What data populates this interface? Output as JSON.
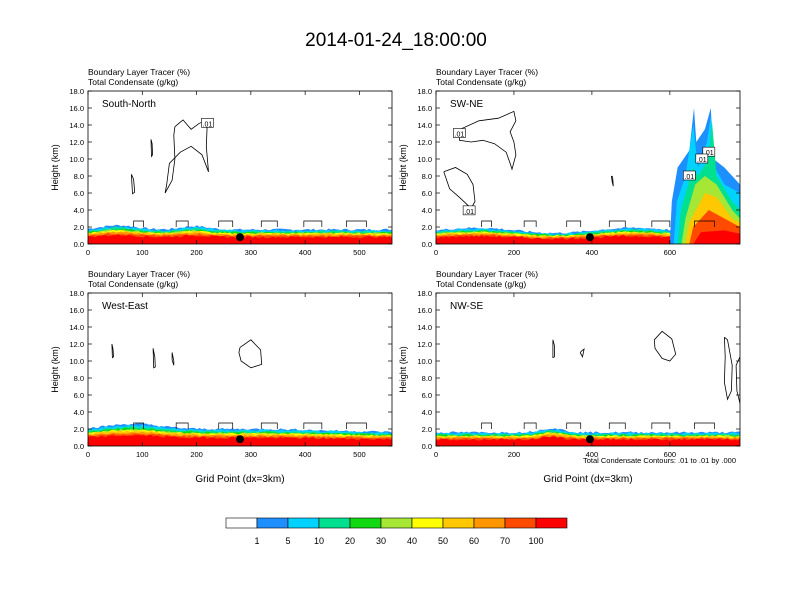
{
  "title": "2014-01-24_18:00:00",
  "chart_data": {
    "type": "heatmap",
    "panels": [
      {
        "name": "South-North",
        "header_line1": "Boundary Layer Tracer    (%)",
        "header_line2": "Total Condensate    (g/kg)",
        "ylabel": "Height (km)",
        "xlabel": "",
        "ylim": [
          0,
          18
        ],
        "xlim": [
          0,
          560
        ],
        "yticks": [
          "0.0",
          "2.0",
          "4.0",
          "6.0",
          "8.0",
          "10.0",
          "12.0",
          "14.0",
          "16.0",
          "18.0"
        ],
        "xticks": [
          0,
          100,
          200,
          300,
          400,
          500
        ],
        "marker_x": 280,
        "contour_labels": [
          {
            "text": ".01",
            "x": 220,
            "y": 14.2
          }
        ]
      },
      {
        "name": "SW-NE",
        "header_line1": "Boundary Layer Tracer    (%)",
        "header_line2": "Total Condensate    (g/kg)",
        "ylabel": "Height (km)",
        "xlabel": "",
        "ylim": [
          0,
          18
        ],
        "xlim": [
          0,
          780
        ],
        "yticks": [
          "0.0",
          "2.0",
          "4.0",
          "6.0",
          "8.0",
          "10.0",
          "12.0",
          "14.0",
          "16.0",
          "18.0"
        ],
        "xticks": [
          0,
          200,
          400,
          600
        ],
        "marker_x": 395,
        "contour_labels": [
          {
            "text": ".01",
            "x": 60,
            "y": 13.0
          },
          {
            "text": ".01",
            "x": 85,
            "y": 3.9
          },
          {
            "text": ".01",
            "x": 650,
            "y": 8.0
          },
          {
            "text": ".01",
            "x": 700,
            "y": 10.8
          },
          {
            "text": ".01",
            "x": 682,
            "y": 10.0
          }
        ]
      },
      {
        "name": "West-East",
        "header_line1": "Boundary Layer Tracer    (%)",
        "header_line2": "Total Condensate    (g/kg)",
        "ylabel": "Height (km)",
        "xlabel": "Grid Point (dx=3km)",
        "ylim": [
          0,
          18
        ],
        "xlim": [
          0,
          560
        ],
        "yticks": [
          "0.0",
          "2.0",
          "4.0",
          "6.0",
          "8.0",
          "10.0",
          "12.0",
          "14.0",
          "16.0",
          "18.0"
        ],
        "xticks": [
          0,
          100,
          200,
          300,
          400,
          500
        ],
        "marker_x": 280,
        "contour_labels": []
      },
      {
        "name": "NW-SE",
        "header_line1": "Boundary Layer Tracer    (%)",
        "header_line2": "Total Condensate    (g/kg)",
        "ylabel": "Height (km)",
        "xlabel": "Grid Point (dx=3km)",
        "ylim": [
          0,
          18
        ],
        "xlim": [
          0,
          780
        ],
        "yticks": [
          "0.0",
          "2.0",
          "4.0",
          "6.0",
          "8.0",
          "10.0",
          "12.0",
          "14.0",
          "16.0",
          "18.0"
        ],
        "xticks": [
          0,
          200,
          400,
          600
        ],
        "marker_x": 395,
        "contour_labels": []
      }
    ],
    "contour_note": "Total Condensate Contours: .01 to .01 by .000",
    "colorbar": {
      "labels": [
        "1",
        "5",
        "10",
        "20",
        "30",
        "40",
        "50",
        "60",
        "70",
        "100"
      ],
      "colors": [
        "#ffffff",
        "#1e8fff",
        "#00d2ff",
        "#00e08e",
        "#12d812",
        "#a6e634",
        "#ffff00",
        "#ffc800",
        "#ff9600",
        "#ff4b00",
        "#ff0000"
      ]
    },
    "layer_colors": {
      "1": "#ffffff",
      "5": "#1e8fff",
      "10": "#00d2ff",
      "20": "#00e08e",
      "30": "#12d812",
      "40": "#a6e634",
      "50": "#ffff00",
      "60": "#ffc800",
      "70": "#ff9600",
      "80": "#ff4b00",
      "100": "#ff0000"
    }
  }
}
